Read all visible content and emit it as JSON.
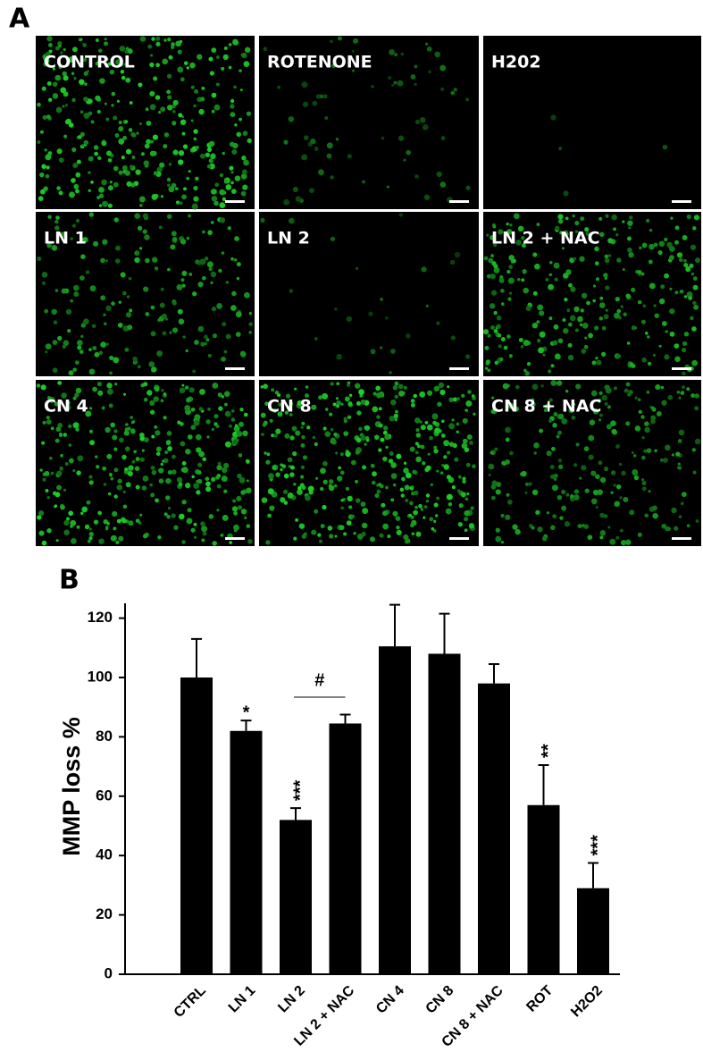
{
  "figure": {
    "panel_a": {
      "label": "A",
      "images": [
        "CONTROL",
        "ROTENONE",
        "H202",
        "LN 1",
        "LN 2",
        "LN 2 + NAC",
        "CN 4",
        "CN 8",
        "CN 8 + NAC"
      ]
    }
  },
  "chart_data": {
    "type": "bar",
    "panel_label": "B",
    "y_label": "MMP loss   %",
    "categories": [
      "CTRL",
      "LN 1",
      "LN 2",
      "LN 2 + NAC",
      "CN 4",
      "CN 8",
      "CN 8 + NAC",
      "ROT",
      "H2O2"
    ],
    "values": [
      100,
      82,
      52,
      84.5,
      110.5,
      108,
      98,
      57,
      29
    ],
    "errors": [
      13,
      3.5,
      4,
      3,
      14,
      13.5,
      6.5,
      13.5,
      8.5
    ],
    "significance": [
      null,
      "*",
      "***",
      null,
      null,
      null,
      null,
      "**",
      "***"
    ],
    "bracket_label": "#",
    "color": "#000000",
    "ylim": [
      0,
      125
    ],
    "yticks": [
      0,
      20,
      40,
      60,
      80,
      100,
      120
    ],
    "grid": false
  }
}
